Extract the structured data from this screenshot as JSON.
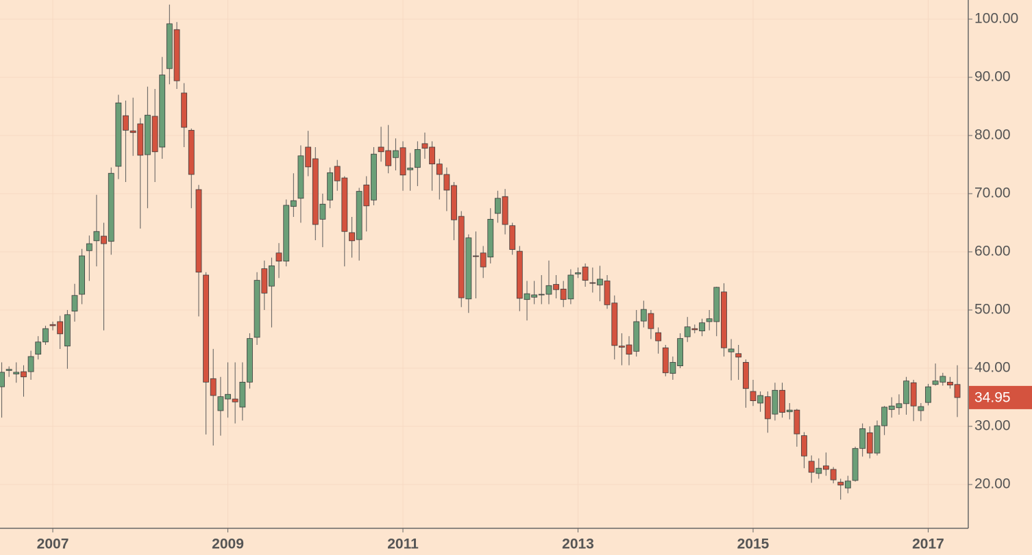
{
  "chart_data": {
    "type": "candlestick",
    "up_color": "#6b9f78",
    "down_color": "#d4533f",
    "grid": true,
    "x": [
      2006.417,
      2006.5,
      2006.583,
      2006.667,
      2006.75,
      2006.833,
      2006.917,
      2007,
      2007.083,
      2007.167,
      2007.25,
      2007.333,
      2007.417,
      2007.5,
      2007.583,
      2007.667,
      2007.75,
      2007.833,
      2007.917,
      2008,
      2008.083,
      2008.167,
      2008.25,
      2008.333,
      2008.417,
      2008.5,
      2008.583,
      2008.667,
      2008.75,
      2008.833,
      2008.917,
      2009,
      2009.083,
      2009.167,
      2009.25,
      2009.333,
      2009.417,
      2009.5,
      2009.583,
      2009.667,
      2009.75,
      2009.833,
      2009.917,
      2010,
      2010.083,
      2010.167,
      2010.25,
      2010.333,
      2010.417,
      2010.5,
      2010.583,
      2010.667,
      2010.75,
      2010.833,
      2010.917,
      2011,
      2011.083,
      2011.167,
      2011.25,
      2011.333,
      2011.417,
      2011.5,
      2011.583,
      2011.667,
      2011.75,
      2011.833,
      2011.917,
      2012,
      2012.083,
      2012.167,
      2012.25,
      2012.333,
      2012.417,
      2012.5,
      2012.583,
      2012.667,
      2012.75,
      2012.833,
      2012.917,
      2013,
      2013.083,
      2013.167,
      2013.25,
      2013.333,
      2013.417,
      2013.5,
      2013.583,
      2013.667,
      2013.75,
      2013.833,
      2013.917,
      2014,
      2014.083,
      2014.167,
      2014.25,
      2014.333,
      2014.417,
      2014.5,
      2014.583,
      2014.667,
      2014.75,
      2014.833,
      2014.917,
      2015,
      2015.083,
      2015.167,
      2015.25,
      2015.333,
      2015.417,
      2015.5,
      2015.583,
      2015.667,
      2015.75,
      2015.833,
      2015.917,
      2016,
      2016.083,
      2016.167,
      2016.25,
      2016.333,
      2016.417,
      2016.5,
      2016.583,
      2016.667,
      2016.75,
      2016.833,
      2016.917,
      2017,
      2017.083,
      2017.167,
      2017.25,
      2017.333
    ],
    "open": [
      36.8,
      39.6,
      39.0,
      39.4,
      39.4,
      42.4,
      44.5,
      47.5,
      48.0,
      43.8,
      49.8,
      52.7,
      60.2,
      61.9,
      62.7,
      61.8,
      74.7,
      83.4,
      80.8,
      82.0,
      76.7,
      83.3,
      78.0,
      91.5,
      98.2,
      87.3,
      80.9,
      70.7,
      56.0,
      38.2,
      32.7,
      34.7,
      34.7,
      33.3,
      37.6,
      45.3,
      57.1,
      54.1,
      59.8,
      58.4,
      67.8,
      69.2,
      78.0,
      76.0,
      65.6,
      68.9,
      74.7,
      72.7,
      63.3,
      62.1,
      71.5,
      68.9,
      78.0,
      77.4,
      76.2,
      77.9,
      74.1,
      74.5,
      78.6,
      78.0,
      75.1,
      73.3,
      71.4,
      66.1,
      51.9,
      59.3,
      59.8,
      59.1,
      66.6,
      69.5,
      64.5,
      60.1,
      51.8,
      52.2,
      52.7,
      52.7,
      54.4,
      53.6,
      51.9,
      56.2,
      57.4,
      54.7,
      54.3,
      55.0,
      51.2,
      43.8,
      44.0,
      42.9,
      48.1,
      49.4,
      46.1,
      43.5,
      39.1,
      40.4,
      45.4,
      46.8,
      46.4,
      48.0,
      48.0,
      53.1,
      42.8,
      42.5,
      41.0,
      36.0,
      34.0,
      35.1,
      32.1,
      36.2,
      32.5,
      32.8,
      28.4,
      24.0,
      21.9,
      23.2,
      22.6,
      20.4,
      19.4,
      20.7,
      26.2,
      28.9,
      25.4,
      30.1,
      32.9,
      33.2,
      33.9,
      37.5,
      32.7,
      34.1,
      37.2,
      37.6,
      37.6,
      37.2
    ],
    "high": [
      41,
      40.3,
      41,
      40.5,
      43,
      45.5,
      47.3,
      48,
      49,
      50,
      54.5,
      60.5,
      62.8,
      69.8,
      65,
      74.5,
      87,
      86,
      86.5,
      83,
      88.4,
      88,
      93.5,
      102.5,
      99.5,
      89,
      81.2,
      71.5,
      56.5,
      43.3,
      38.5,
      41,
      41,
      41,
      46,
      56.5,
      58.5,
      59,
      61.5,
      69,
      73.5,
      78.3,
      80.8,
      78,
      70,
      74.5,
      75.8,
      73,
      66,
      71,
      73,
      78,
      81.5,
      81.8,
      79.5,
      79,
      77,
      79,
      80.5,
      79,
      76,
      74.5,
      72,
      67,
      63,
      63.5,
      61,
      67.5,
      70.5,
      70.8,
      65,
      61,
      55,
      55,
      56,
      58.5,
      56,
      55,
      57,
      57.3,
      58,
      57.3,
      57.6,
      56,
      52.5,
      46,
      45.5,
      50,
      51.6,
      50,
      47,
      44,
      42,
      46,
      48.8,
      47.5,
      48.5,
      50,
      54,
      54.6,
      45,
      44,
      41.5,
      38,
      36,
      36,
      37.5,
      37.5,
      34,
      33,
      29,
      25,
      24.5,
      25.5,
      23,
      21,
      21.5,
      26.5,
      30.5,
      30,
      31,
      33.5,
      35,
      35.5,
      38.5,
      38,
      34,
      37.3,
      40.8,
      39.2,
      38.5,
      40.5
    ],
    "low": [
      31.5,
      38.5,
      37.5,
      35.1,
      38,
      41.5,
      44,
      46.5,
      43.3,
      39.9,
      48,
      51,
      55,
      57.5,
      46.5,
      59.5,
      72.5,
      72,
      76.5,
      64,
      67.5,
      72,
      76,
      88.8,
      88,
      78,
      67.5,
      48.9,
      28.6,
      26.7,
      28.4,
      31.5,
      30.5,
      31,
      36.5,
      44,
      50,
      47,
      55.5,
      57.5,
      66,
      65,
      73,
      62,
      60.8,
      67.5,
      70.5,
      57.5,
      59,
      58.5,
      63.5,
      68,
      75.5,
      73.5,
      74,
      70.5,
      70.5,
      71.3,
      76,
      70.5,
      69,
      67,
      62,
      50.5,
      49.5,
      52,
      55.5,
      58,
      65,
      63,
      59.5,
      49.8,
      48.2,
      51,
      51,
      51,
      52,
      50.5,
      51,
      55.5,
      54,
      53,
      51.5,
      50.2,
      41.5,
      40.5,
      40.5,
      42,
      47,
      45,
      42.5,
      38.6,
      38,
      40,
      44.5,
      46,
      45.5,
      46.5,
      45.5,
      42,
      37.9,
      38,
      33.2,
      33.5,
      32.5,
      28.9,
      31,
      31.5,
      31.2,
      26.5,
      22.8,
      20.3,
      21,
      21.5,
      20.2,
      17.4,
      18.5,
      20.5,
      24.8,
      24.5,
      25,
      28.5,
      31.5,
      32,
      32,
      30.9,
      30.9,
      33.6,
      37,
      37,
      36.5,
      31.6
    ],
    "close": [
      39.3,
      39.8,
      39.3,
      38.5,
      42.0,
      44.5,
      46.8,
      47.3,
      45.9,
      49.2,
      52.5,
      59.3,
      61.4,
      63.5,
      61.4,
      73.5,
      85.6,
      80.9,
      80.5,
      76.6,
      83.5,
      77.2,
      90.4,
      99.2,
      89.4,
      81.4,
      73.3,
      56.5,
      37.6,
      35.3,
      35.1,
      35.5,
      34.2,
      37.6,
      45.1,
      55.1,
      52.9,
      57.6,
      58.4,
      68.0,
      68.8,
      76.5,
      74.6,
      64.7,
      68.2,
      73.6,
      72.2,
      63.5,
      61.9,
      70.4,
      67.9,
      76.8,
      77.2,
      74.8,
      77.4,
      73.2,
      74.4,
      77.6,
      77.8,
      75.1,
      73.3,
      70.6,
      65.5,
      52.1,
      62.4,
      59.2,
      57.4,
      65.6,
      69.2,
      64.7,
      60.4,
      52.0,
      52.8,
      52.6,
      52.7,
      54.2,
      53.5,
      51.8,
      56.0,
      56.4,
      55.1,
      54.6,
      55.3,
      50.9,
      43.9,
      43.6,
      42.4,
      48.0,
      50.1,
      46.8,
      44.7,
      39.2,
      41.0,
      45.1,
      47.1,
      46.6,
      47.8,
      48.5,
      53.9,
      43.5,
      43.3,
      41.9,
      36.5,
      34.4,
      35.3,
      31.3,
      36.2,
      32.4,
      32.8,
      28.7,
      24.9,
      22.1,
      22.8,
      22.6,
      20.8,
      19.9,
      20.6,
      26.2,
      29.6,
      25.4,
      30.1,
      33.3,
      33.5,
      33.9,
      37.8,
      33.5,
      33.4,
      36.8,
      37.8,
      38.6,
      37.1,
      34.95
    ],
    "xlim": [
      2006.397,
      2017.458
    ],
    "xticks": [
      2007,
      2009,
      2011,
      2013,
      2015,
      2017
    ],
    "ylim": [
      12.47,
      103.29
    ],
    "yticks": [
      {
        "value": 20,
        "label": "20.00"
      },
      {
        "value": 30,
        "label": "30.00"
      },
      {
        "value": 40,
        "label": "40.00"
      },
      {
        "value": 50,
        "label": "50.00"
      },
      {
        "value": 60,
        "label": "60.00"
      },
      {
        "value": 70,
        "label": "70.00"
      },
      {
        "value": 80,
        "label": "80.00"
      },
      {
        "value": 90,
        "label": "90.00"
      },
      {
        "value": 100,
        "label": "100.00"
      }
    ]
  }
}
